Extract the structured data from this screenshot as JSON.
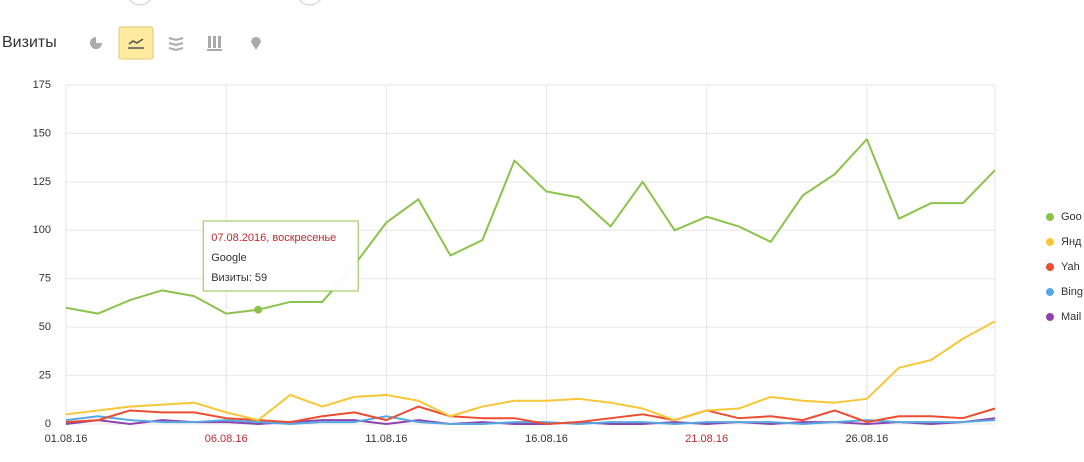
{
  "header": {
    "title": "Визиты"
  },
  "chart_data": {
    "type": "line",
    "categories": [
      "01.08.16",
      null,
      null,
      null,
      null,
      "06.08.16",
      null,
      null,
      null,
      null,
      "11.08.16",
      null,
      null,
      null,
      null,
      "16.08.16",
      null,
      null,
      null,
      null,
      "21.08.16",
      null,
      null,
      null,
      null,
      "26.08.16",
      null,
      null,
      null,
      null
    ],
    "highlight_categories": [
      "06.08.16",
      "21.08.16"
    ],
    "highlight_color": "#c0282d",
    "ylim": [
      0,
      175
    ],
    "yticks": [
      0,
      25,
      50,
      75,
      100,
      125,
      150,
      175
    ],
    "grid": true,
    "legend": "right",
    "series": [
      {
        "name": "Goo",
        "color": "#8bc34a",
        "values": [
          60,
          57,
          64,
          69,
          66,
          57,
          59,
          63,
          63,
          82,
          104,
          116,
          87,
          95,
          136,
          120,
          117,
          102,
          125,
          100,
          107,
          102,
          94,
          118,
          129,
          147,
          106,
          114,
          114,
          131
        ]
      },
      {
        "name": "Янд",
        "color": "#f8c636",
        "values": [
          5,
          7,
          9,
          10,
          11,
          6,
          2,
          15,
          9,
          14,
          15,
          12,
          4,
          9,
          12,
          12,
          13,
          11,
          8,
          2,
          7,
          8,
          14,
          12,
          11,
          13,
          29,
          33,
          44,
          53
        ]
      },
      {
        "name": "Yah",
        "color": "#eb4d30",
        "values": [
          1,
          2,
          7,
          6,
          6,
          3,
          2,
          1,
          4,
          6,
          2,
          9,
          4,
          3,
          3,
          0,
          1,
          3,
          5,
          2,
          7,
          3,
          4,
          2,
          7,
          1,
          4,
          4,
          3,
          8
        ]
      },
      {
        "name": "Bing",
        "color": "#56a8e0",
        "values": [
          2,
          4,
          2,
          1,
          1,
          2,
          1,
          0,
          1,
          1,
          4,
          1,
          0,
          0,
          1,
          1,
          0,
          1,
          1,
          0,
          1,
          1,
          1,
          0,
          1,
          2,
          1,
          1,
          1,
          2
        ]
      },
      {
        "name": "Mail",
        "color": "#8e44ad",
        "values": [
          0,
          2,
          0,
          2,
          1,
          1,
          0,
          1,
          2,
          2,
          0,
          2,
          0,
          1,
          0,
          0,
          1,
          0,
          0,
          1,
          0,
          1,
          0,
          1,
          1,
          0,
          1,
          0,
          1,
          3
        ]
      }
    ],
    "tooltip": {
      "index": 6,
      "series": 0,
      "date": "07.08.2016, воскресенье",
      "name": "Google",
      "text": "Визиты: 59"
    }
  }
}
